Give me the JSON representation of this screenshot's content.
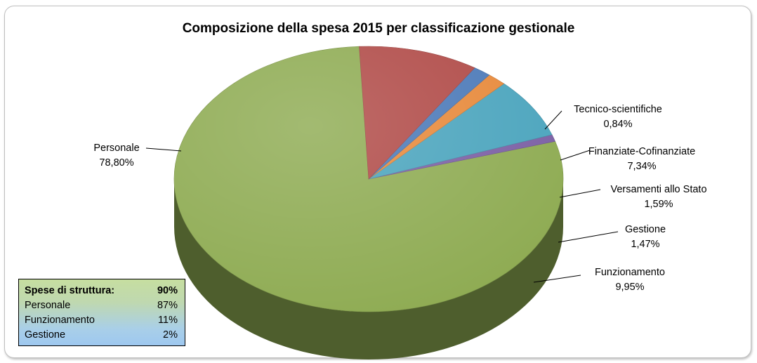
{
  "chart_data": {
    "type": "pie",
    "title": "Composizione della spesa 2015 per classificazione gestionale",
    "slices": [
      {
        "label": "Personale",
        "value": 78.8,
        "value_label": "78,80%",
        "color": "#8eab52"
      },
      {
        "label": "Tecnico-scientifiche",
        "value": 0.84,
        "value_label": "0,84%",
        "color": "#7b5fa4"
      },
      {
        "label": "Finanziate-Cofinanziate",
        "value": 7.34,
        "value_label": "7,34%",
        "color": "#4aa4bd"
      },
      {
        "label": "Versamenti allo Stato",
        "value": 1.59,
        "value_label": "1,59%",
        "color": "#e7893a"
      },
      {
        "label": "Gestione",
        "value": 1.47,
        "value_label": "1,47%",
        "color": "#4b79b8"
      },
      {
        "label": "Funzionamento",
        "value": 9.95,
        "value_label": "9,95%",
        "color": "#b04a47"
      }
    ]
  },
  "info_box": {
    "header": {
      "label": "Spese di struttura:",
      "value": "90%"
    },
    "rows": [
      {
        "label": "Personale",
        "value": "87%"
      },
      {
        "label": "Funzionamento",
        "value": "11%"
      },
      {
        "label": "Gestione",
        "value": "2%"
      }
    ]
  }
}
